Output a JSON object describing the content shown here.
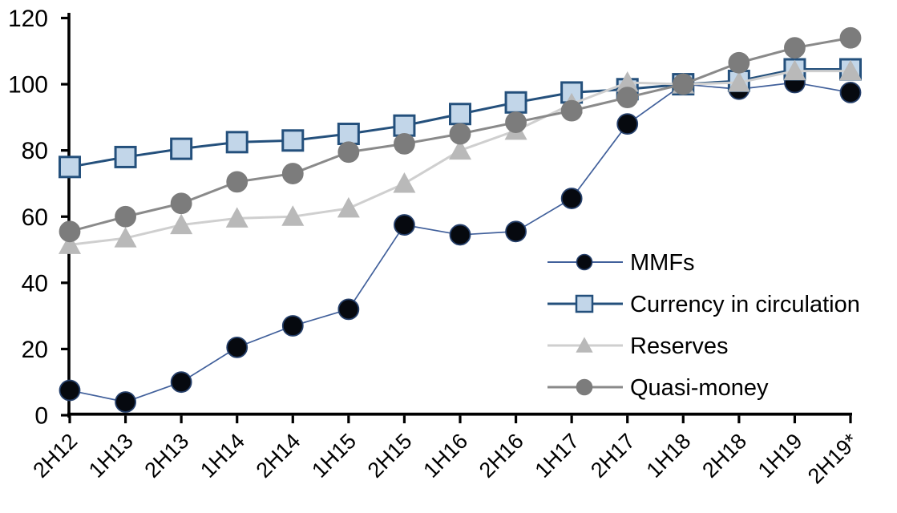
{
  "chart_data": {
    "type": "line",
    "title": "",
    "xlabel": "",
    "ylabel": "",
    "grid": false,
    "categories": [
      "2H12",
      "1H13",
      "2H13",
      "1H14",
      "2H14",
      "1H15",
      "2H15",
      "1H16",
      "2H16",
      "1H17",
      "2H17",
      "1H18",
      "2H18",
      "1H19",
      "2H19*"
    ],
    "series": [
      {
        "name": "MMFs",
        "marker": "circle",
        "marker_fill": "#06090f",
        "marker_stroke": "#26406b",
        "line_color": "#41609b",
        "line_width": 1.7,
        "values": [
          7.5,
          4,
          10,
          20.5,
          27,
          32,
          57.5,
          54.5,
          55.5,
          65.5,
          88,
          100,
          98.5,
          100.5,
          97.5
        ]
      },
      {
        "name": "Currency in circulation",
        "marker": "square",
        "marker_fill": "#c2d6e9",
        "marker_stroke": "#24507c",
        "line_color": "#24507c",
        "line_width": 3,
        "values": [
          75,
          78,
          80.5,
          82.5,
          83,
          85,
          87.5,
          91,
          94.5,
          97.5,
          98.5,
          100,
          101,
          104.5,
          104.5
        ]
      },
      {
        "name": "Reserves",
        "marker": "triangle",
        "marker_fill": "#b9b9b9",
        "marker_stroke": "#b9b9b9",
        "line_color": "#cfcfcf",
        "line_width": 3,
        "values": [
          51.5,
          53.5,
          57.5,
          59.5,
          60,
          62.5,
          70,
          80,
          86,
          94,
          100.5,
          100,
          100.5,
          104,
          104
        ]
      },
      {
        "name": "Quasi-money",
        "marker": "circle",
        "marker_fill": "#7c7c7c",
        "marker_stroke": "#7c7c7c",
        "line_color": "#8a8a8a",
        "line_width": 3,
        "values": [
          55.5,
          60,
          64,
          70.5,
          73,
          79.5,
          82,
          85,
          88.5,
          92,
          96,
          100,
          106.5,
          111,
          114
        ]
      }
    ],
    "y_axis": {
      "min": 0,
      "max": 120,
      "step": 20,
      "tick_labels": [
        "0",
        "20",
        "40",
        "60",
        "80",
        "100",
        "120"
      ]
    },
    "x_axis": {
      "tick_labels": [
        "2H12",
        "1H13",
        "2H13",
        "1H14",
        "2H14",
        "1H15",
        "2H15",
        "1H16",
        "2H16",
        "1H17",
        "2H17",
        "1H18",
        "2H18",
        "1H19",
        "2H19*"
      ],
      "label_rotation_deg": -45
    },
    "legend": {
      "position": "inside-right",
      "items": [
        "MMFs",
        "Currency in circulation",
        "Reserves",
        "Quasi-money"
      ]
    },
    "axis_color": "#000000"
  }
}
